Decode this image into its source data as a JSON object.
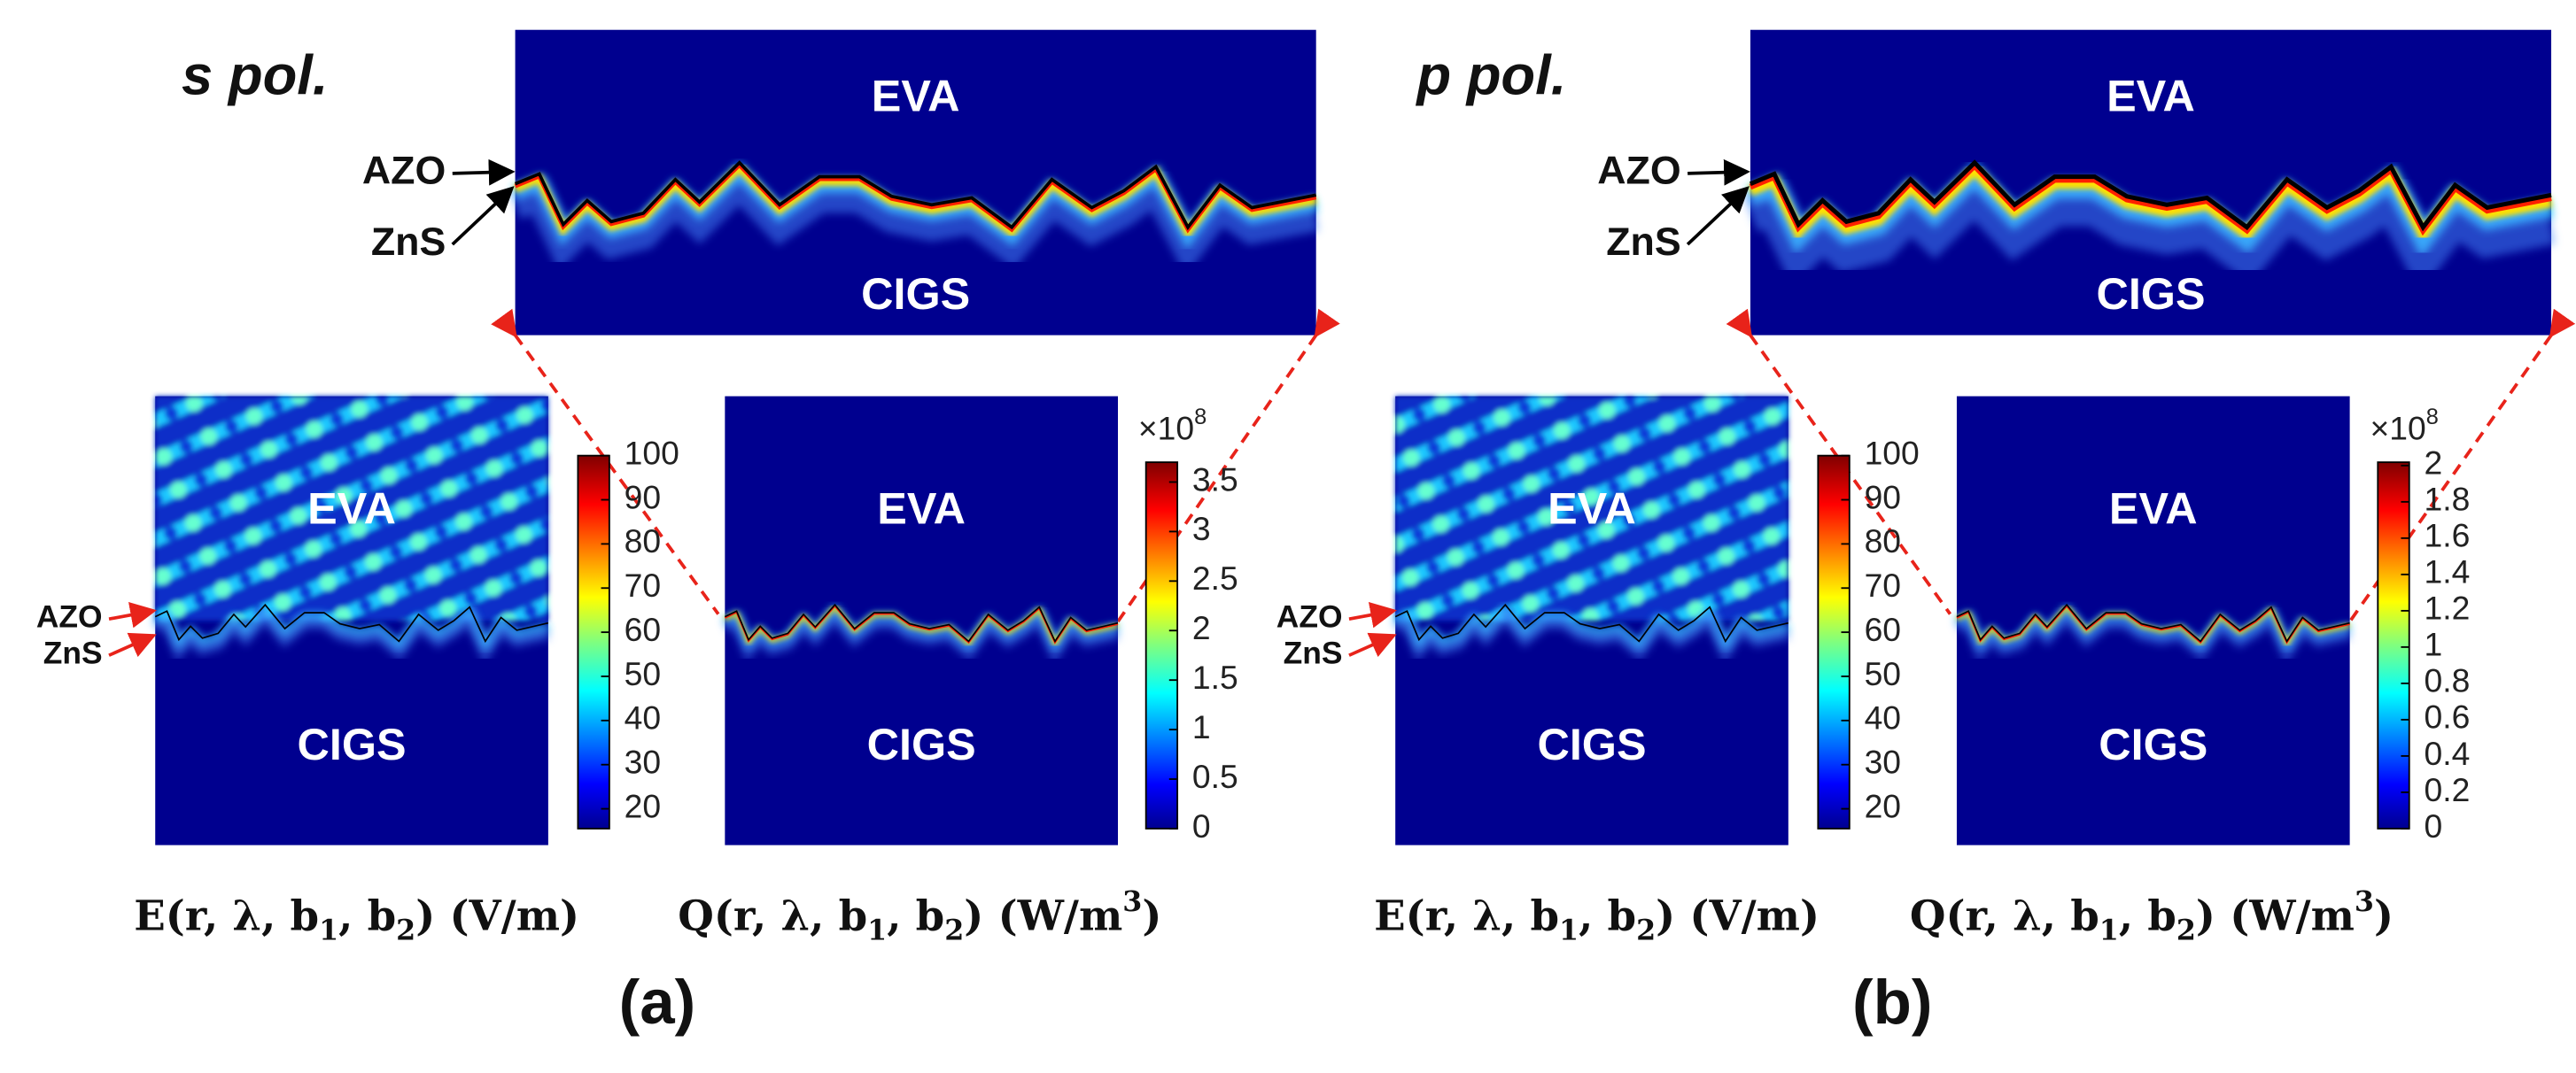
{
  "panels": [
    {
      "label": "(a)",
      "polarization": "s pol.",
      "zoom": {
        "top_region": "EVA",
        "bottom_region": "CIGS",
        "layers": [
          "AZO",
          "ZnS"
        ]
      },
      "maps": [
        {
          "top_region": "EVA",
          "bottom_region": "CIGS",
          "layers": [
            "AZO",
            "ZnS"
          ],
          "colorbar": {
            "ticks": [
              20,
              30,
              40,
              50,
              60,
              70,
              80,
              90,
              100
            ]
          },
          "caption": [
            {
              "text": "E(r, λ, b"
            },
            {
              "text": "1",
              "sub": true
            },
            {
              "text": ", b"
            },
            {
              "text": "2",
              "sub": true
            },
            {
              "text": ") (V/m)"
            }
          ]
        },
        {
          "top_region": "EVA",
          "bottom_region": "CIGS",
          "colorbar": {
            "multiplier": [
              {
                "text": "×10"
              },
              {
                "text": "8",
                "sup": true
              }
            ],
            "ticks": [
              0,
              0.5,
              1,
              1.5,
              2,
              2.5,
              3,
              3.5
            ]
          },
          "caption": [
            {
              "text": "Q(r, λ, b"
            },
            {
              "text": "1",
              "sub": true
            },
            {
              "text": ", b"
            },
            {
              "text": "2",
              "sub": true
            },
            {
              "text": ") (W/m"
            },
            {
              "text": "3",
              "sup": true
            },
            {
              "text": ")"
            }
          ]
        }
      ]
    },
    {
      "label": "(b)",
      "polarization": "p pol.",
      "zoom": {
        "top_region": "EVA",
        "bottom_region": "CIGS",
        "layers": [
          "AZO",
          "ZnS"
        ]
      },
      "maps": [
        {
          "top_region": "EVA",
          "bottom_region": "CIGS",
          "layers": [
            "AZO",
            "ZnS"
          ],
          "colorbar": {
            "ticks": [
              20,
              30,
              40,
              50,
              60,
              70,
              80,
              90,
              100
            ]
          },
          "caption": [
            {
              "text": "E(r, λ, b"
            },
            {
              "text": "1",
              "sub": true
            },
            {
              "text": ", b"
            },
            {
              "text": "2",
              "sub": true
            },
            {
              "text": ") (V/m)"
            }
          ]
        },
        {
          "top_region": "EVA",
          "bottom_region": "CIGS",
          "colorbar": {
            "multiplier": [
              {
                "text": "×10"
              },
              {
                "text": "8",
                "sup": true
              }
            ],
            "ticks": [
              0,
              0.2,
              0.4,
              0.6,
              0.8,
              1,
              1.2,
              1.4,
              1.6,
              1.8,
              2
            ]
          },
          "caption": [
            {
              "text": "Q(r, λ, b"
            },
            {
              "text": "1",
              "sub": true
            },
            {
              "text": ", b"
            },
            {
              "text": "2",
              "sub": true
            },
            {
              "text": ") (W/m"
            },
            {
              "text": "3",
              "sup": true
            },
            {
              "text": ")"
            }
          ]
        }
      ]
    }
  ]
}
